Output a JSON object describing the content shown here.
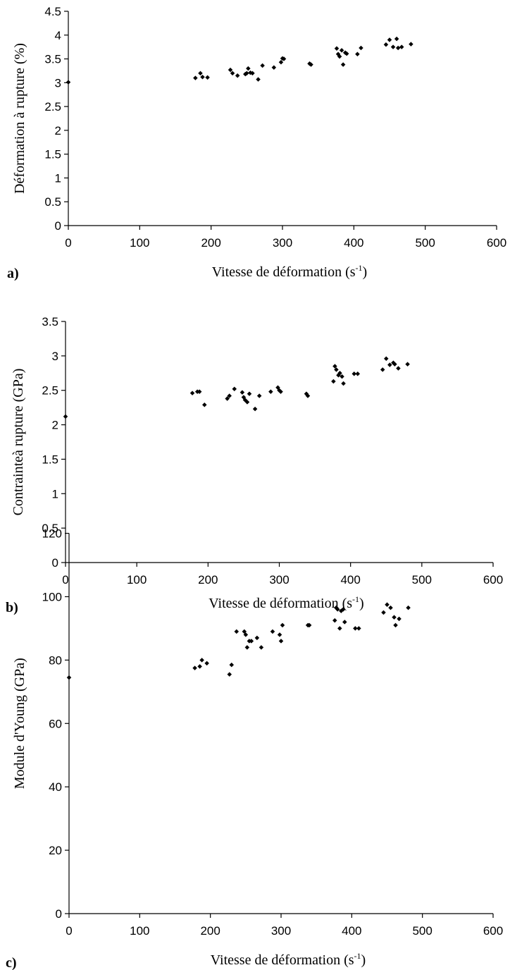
{
  "chart_data": [
    {
      "type": "scatter",
      "panel_label": "a)",
      "xlabel": "Vitesse de déformation  (s",
      "xlabel_sup": "-1",
      "xlabel_tail": ")",
      "ylabel": "Déformation à rupture  (%)",
      "xlim": [
        0,
        600
      ],
      "ylim": [
        0,
        4.5
      ],
      "xticks": [
        "0",
        "100",
        "200",
        "300",
        "400",
        "500",
        "600"
      ],
      "yticks": [
        "0",
        "0.5",
        "1",
        "1.5",
        "2",
        "2.5",
        "3",
        "3.5",
        "4",
        "4.5"
      ],
      "x": [
        0,
        178,
        185,
        188,
        195,
        227,
        230,
        237,
        248,
        250,
        252,
        255,
        258,
        266,
        272,
        288,
        298,
        300,
        302,
        338,
        340,
        376,
        378,
        380,
        383,
        385,
        388,
        390,
        405,
        410,
        445,
        450,
        455,
        460,
        462,
        467,
        480
      ],
      "y": [
        3.01,
        3.1,
        3.2,
        3.12,
        3.11,
        3.27,
        3.2,
        3.15,
        3.18,
        3.2,
        3.3,
        3.21,
        3.2,
        3.07,
        3.36,
        3.32,
        3.43,
        3.51,
        3.5,
        3.4,
        3.38,
        3.72,
        3.6,
        3.55,
        3.68,
        3.38,
        3.63,
        3.61,
        3.6,
        3.73,
        3.8,
        3.9,
        3.75,
        3.92,
        3.73,
        3.75,
        3.81
      ]
    },
    {
      "type": "scatter",
      "panel_label": "b)",
      "xlabel": "Vitesse de déformation  (s",
      "xlabel_sup": "-1",
      "xlabel_tail": ")",
      "ylabel": "Contrainteà rupture  (GPa)",
      "xlim": [
        0,
        600
      ],
      "ylim": [
        0,
        3.5
      ],
      "xticks": [
        "0",
        "100",
        "200",
        "300",
        "400",
        "500",
        "600"
      ],
      "yticks": [
        "0",
        "0.5",
        "1",
        "1.5",
        "2",
        "2.5",
        "3",
        "3.5"
      ],
      "x": [
        0,
        178,
        185,
        188,
        195,
        227,
        230,
        237,
        248,
        250,
        252,
        255,
        258,
        266,
        272,
        288,
        298,
        300,
        302,
        338,
        340,
        376,
        378,
        380,
        383,
        385,
        388,
        390,
        405,
        410,
        445,
        450,
        455,
        460,
        462,
        467,
        480
      ],
      "y": [
        2.12,
        2.46,
        2.48,
        2.48,
        2.29,
        2.38,
        2.42,
        2.52,
        2.47,
        2.4,
        2.36,
        2.33,
        2.45,
        2.23,
        2.42,
        2.48,
        2.54,
        2.5,
        2.48,
        2.45,
        2.42,
        2.63,
        2.85,
        2.8,
        2.72,
        2.75,
        2.7,
        2.6,
        2.74,
        2.74,
        2.8,
        2.96,
        2.87,
        2.9,
        2.88,
        2.82,
        2.88
      ]
    },
    {
      "type": "scatter",
      "panel_label": "c)",
      "xlabel": "Vitesse de déformation  (s",
      "xlabel_sup": "-1",
      "xlabel_tail": ")",
      "ylabel": "Module d'Young  (GPa)",
      "xlim": [
        0,
        600
      ],
      "ylim": [
        0,
        120
      ],
      "xticks": [
        "0",
        "100",
        "200",
        "300",
        "400",
        "500",
        "600"
      ],
      "yticks": [
        "0",
        "20",
        "40",
        "60",
        "80",
        "100",
        "120"
      ],
      "x": [
        0,
        178,
        185,
        188,
        195,
        227,
        230,
        237,
        248,
        250,
        252,
        255,
        258,
        266,
        272,
        288,
        298,
        300,
        302,
        338,
        340,
        376,
        378,
        380,
        383,
        385,
        388,
        390,
        405,
        410,
        445,
        450,
        455,
        460,
        462,
        467,
        480
      ],
      "y": [
        74.5,
        77.5,
        78,
        80,
        79,
        75.5,
        78.5,
        89,
        89,
        88,
        84,
        86,
        86,
        87,
        84,
        89,
        88,
        86,
        91,
        91,
        91,
        92.5,
        96.5,
        96,
        90,
        95.5,
        96,
        92,
        90,
        90,
        95,
        97.5,
        96.5,
        93.5,
        91,
        93,
        96.5
      ]
    }
  ]
}
